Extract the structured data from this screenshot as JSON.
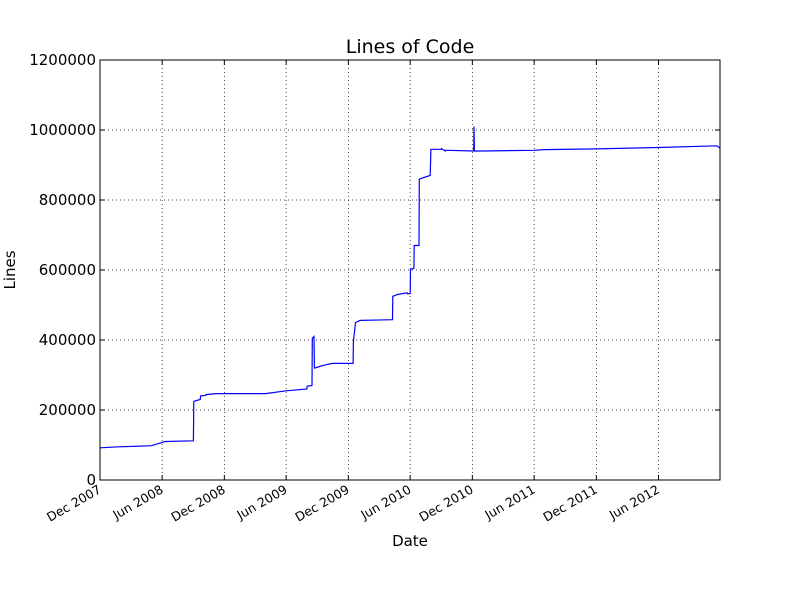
{
  "chart_data": {
    "type": "line",
    "title": "Lines of Code",
    "xlabel": "Date",
    "ylabel": "Lines",
    "ylim": [
      0,
      1200000
    ],
    "xlim": [
      "2007-12-01",
      "2012-11-29"
    ],
    "grid": true,
    "line_color": "#0000ff",
    "yticks": [
      0,
      200000,
      400000,
      600000,
      800000,
      1000000,
      1200000
    ],
    "ytick_labels": [
      "0",
      "200000",
      "400000",
      "600000",
      "800000",
      "1000000",
      "1200000"
    ],
    "xticks": [
      "2007-12-01",
      "2008-06-01",
      "2008-12-01",
      "2009-06-01",
      "2009-12-01",
      "2010-06-01",
      "2010-12-01",
      "2011-06-01",
      "2011-12-01",
      "2012-06-01"
    ],
    "xtick_labels": [
      "Dec 2007",
      "Jun 2008",
      "Dec 2008",
      "Jun 2009",
      "Dec 2009",
      "Jun 2010",
      "Dec 2010",
      "Jun 2011",
      "Dec 2011",
      "Jun 2012"
    ],
    "series": [
      {
        "x": [
          "2007-12-01",
          "2008-01-26",
          "2008-03-29",
          "2008-05-01",
          "2008-06-10",
          "2008-09-01",
          "2008-09-02",
          "2008-09-21",
          "2008-09-22",
          "2008-10-07",
          "2008-10-08",
          "2008-10-29",
          "2008-11-15",
          "2009-04-01",
          "2009-06-01",
          "2009-08-01",
          "2009-08-02",
          "2009-08-16",
          "2009-08-17",
          "2009-08-22",
          "2009-08-23",
          "2009-08-25",
          "2009-09-20",
          "2009-10-15",
          "2009-12-15",
          "2009-12-16",
          "2009-12-22",
          "2010-01-05",
          "2010-04-10",
          "2010-04-11",
          "2010-04-25",
          "2010-05-23",
          "2010-05-24",
          "2010-06-01",
          "2010-06-02",
          "2010-06-12",
          "2010-06-13",
          "2010-06-27",
          "2010-06-28",
          "2010-07-29",
          "2010-07-30",
          "2010-08-01",
          "2010-08-31",
          "2010-09-01",
          "2010-09-13",
          "2010-09-14",
          "2010-09-17",
          "2010-12-05",
          "2010-12-06",
          "2010-12-07",
          "2011-01-01",
          "2011-06-01",
          "2011-07-01",
          "2011-12-01",
          "2012-06-01",
          "2012-11-20",
          "2012-11-29"
        ],
        "y": [
          92000,
          95000,
          97000,
          98000,
          110000,
          112000,
          225000,
          230000,
          240000,
          242000,
          244000,
          246000,
          247000,
          247000,
          255000,
          260000,
          268000,
          270000,
          405000,
          410000,
          320000,
          320000,
          328000,
          333000,
          333000,
          395000,
          450000,
          456000,
          458000,
          525000,
          530000,
          535000,
          532000,
          533000,
          602000,
          605000,
          670000,
          670000,
          860000,
          870000,
          870000,
          945000,
          945000,
          947000,
          940000,
          942000,
          942000,
          940000,
          1010000,
          940000,
          940000,
          942000,
          944000,
          946000,
          950000,
          955000,
          948000
        ]
      }
    ]
  }
}
